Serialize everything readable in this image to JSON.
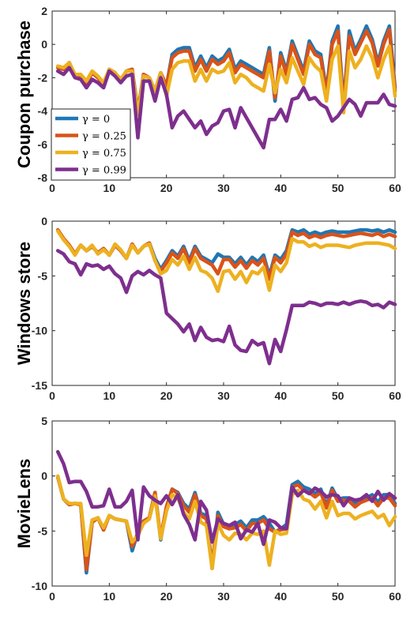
{
  "colors": {
    "gamma_0": "#1f77b4",
    "gamma_0_25": "#d95319",
    "gamma_0_75": "#edb120",
    "gamma_0_99": "#7e2f8e"
  },
  "chart_data": [
    {
      "type": "line",
      "title": "",
      "xlabel": "",
      "ylabel": "Coupon purchase",
      "xlim": [
        0,
        60
      ],
      "ylim": [
        -8,
        2
      ],
      "xticks": [
        "0",
        "10",
        "20",
        "30",
        "40",
        "50",
        "60"
      ],
      "yticks": [
        "2",
        "0",
        "-2",
        "-4",
        "-6",
        "-8"
      ],
      "legend": [
        "γ = 0",
        "γ = 0.25",
        "γ = 0.75",
        "γ = 0.99"
      ],
      "legend_position": "lower-left",
      "grid": false,
      "x": [
        1,
        2,
        3,
        4,
        5,
        6,
        7,
        8,
        9,
        10,
        11,
        12,
        13,
        14,
        15,
        16,
        17,
        18,
        19,
        20,
        21,
        22,
        23,
        24,
        25,
        26,
        27,
        28,
        29,
        30,
        31,
        32,
        33,
        34,
        35,
        36,
        37,
        38,
        39,
        40,
        41,
        42,
        43,
        44,
        45,
        46,
        47,
        48,
        49,
        50,
        51,
        52,
        53,
        54,
        55,
        56,
        57,
        58,
        59,
        60
      ],
      "series": [
        {
          "name": "γ = 0",
          "values": [
            -1.4,
            -1.5,
            -1.1,
            -1.9,
            -1.9,
            -2.3,
            -1.7,
            -2.0,
            -2.4,
            -1.5,
            -1.7,
            -2.2,
            -1.6,
            -1.5,
            -4.0,
            -1.8,
            -2.0,
            -2.8,
            -1.7,
            -2.5,
            -0.6,
            -0.3,
            -0.2,
            -0.2,
            -1.4,
            -0.7,
            -1.4,
            -0.7,
            -1.0,
            -0.8,
            -0.3,
            -1.5,
            -1.0,
            -1.2,
            -1.4,
            -1.6,
            -1.8,
            -0.2,
            -3.4,
            -0.5,
            -1.6,
            0.2,
            -0.7,
            -1.6,
            0.2,
            -0.4,
            -0.6,
            -2.8,
            0.2,
            1.1,
            -3.6,
            0.8,
            -0.4,
            0.3,
            1.1,
            0.3,
            -1.1,
            0.2,
            1.1,
            -2.6
          ]
        },
        {
          "name": "γ = 0.25",
          "values": [
            -1.4,
            -1.5,
            -1.1,
            -1.9,
            -1.9,
            -2.3,
            -1.7,
            -2.0,
            -2.4,
            -1.5,
            -1.7,
            -2.2,
            -1.6,
            -1.5,
            -4.1,
            -1.8,
            -2.0,
            -2.8,
            -1.7,
            -2.5,
            -0.8,
            -0.5,
            -0.4,
            -0.4,
            -1.6,
            -0.9,
            -1.6,
            -0.9,
            -1.2,
            -1.0,
            -0.5,
            -1.7,
            -1.2,
            -1.4,
            -1.6,
            -1.8,
            -2.0,
            -0.4,
            -3.2,
            -0.7,
            -1.8,
            0.0,
            -0.9,
            -1.8,
            0.0,
            -0.6,
            -0.8,
            -3.0,
            0.0,
            0.8,
            -3.8,
            0.5,
            -0.6,
            0.1,
            0.8,
            0.1,
            -1.3,
            0.0,
            0.9,
            -2.8
          ]
        },
        {
          "name": "γ = 0.75",
          "values": [
            -1.3,
            -1.4,
            -1.1,
            -1.8,
            -1.8,
            -2.2,
            -1.6,
            -1.9,
            -2.3,
            -1.5,
            -1.7,
            -2.1,
            -1.6,
            -1.6,
            -4.2,
            -1.9,
            -2.0,
            -2.8,
            -1.7,
            -3.1,
            -1.5,
            -1.1,
            -1.0,
            -1.0,
            -2.2,
            -1.5,
            -2.2,
            -1.5,
            -1.7,
            -1.6,
            -1.1,
            -2.3,
            -1.8,
            -2.0,
            -2.4,
            -2.6,
            -2.8,
            -1.2,
            -2.9,
            -1.5,
            -2.3,
            -0.8,
            -1.6,
            -2.4,
            -0.8,
            -1.3,
            -1.6,
            -3.4,
            -0.9,
            -0.1,
            -4.1,
            -0.4,
            -1.4,
            -0.9,
            -0.1,
            -0.8,
            -2.0,
            -0.9,
            -0.1,
            -3.1
          ]
        },
        {
          "name": "γ = 0.99",
          "values": [
            -1.6,
            -1.8,
            -1.4,
            -2.0,
            -2.1,
            -2.6,
            -2.1,
            -2.3,
            -2.6,
            -1.6,
            -1.9,
            -2.3,
            -1.9,
            -1.8,
            -5.6,
            -2.2,
            -2.2,
            -3.4,
            -2.0,
            -3.0,
            -5.0,
            -4.3,
            -4.0,
            -4.5,
            -5.0,
            -4.6,
            -5.4,
            -4.9,
            -4.7,
            -4.0,
            -3.9,
            -5.0,
            -3.8,
            -4.4,
            -5.0,
            -5.6,
            -6.2,
            -4.5,
            -4.5,
            -3.9,
            -4.6,
            -3.3,
            -3.2,
            -2.6,
            -3.3,
            -3.2,
            -3.6,
            -3.8,
            -4.6,
            -4.3,
            -3.8,
            -3.3,
            -3.6,
            -4.3,
            -3.5,
            -3.5,
            -3.5,
            -3.0,
            -3.6,
            -3.7
          ]
        }
      ]
    },
    {
      "type": "line",
      "title": "",
      "xlabel": "",
      "ylabel": "Windows store",
      "xlim": [
        0,
        60
      ],
      "ylim": [
        -15,
        0
      ],
      "xticks": [
        "0",
        "10",
        "20",
        "30",
        "40",
        "50",
        "60"
      ],
      "yticks": [
        "0",
        "-5",
        "-10",
        "-15"
      ],
      "grid": false,
      "x": [
        1,
        2,
        3,
        4,
        5,
        6,
        7,
        8,
        9,
        10,
        11,
        12,
        13,
        14,
        15,
        16,
        17,
        18,
        19,
        20,
        21,
        22,
        23,
        24,
        25,
        26,
        27,
        28,
        29,
        30,
        31,
        32,
        33,
        34,
        35,
        36,
        37,
        38,
        39,
        40,
        41,
        42,
        43,
        44,
        45,
        46,
        47,
        48,
        49,
        50,
        51,
        52,
        53,
        54,
        55,
        56,
        57,
        58,
        59,
        60
      ],
      "series": [
        {
          "name": "γ = 0",
          "values": [
            -0.8,
            -1.6,
            -2.2,
            -3.0,
            -2.2,
            -2.7,
            -2.3,
            -2.9,
            -2.5,
            -3.1,
            -2.2,
            -2.7,
            -3.4,
            -2.1,
            -2.9,
            -2.3,
            -2.0,
            -3.4,
            -4.4,
            -3.6,
            -2.7,
            -3.2,
            -2.3,
            -3.6,
            -2.3,
            -3.2,
            -3.5,
            -3.8,
            -3.0,
            -3.3,
            -3.3,
            -3.9,
            -3.3,
            -4.0,
            -3.3,
            -3.7,
            -3.1,
            -5.0,
            -3.1,
            -3.5,
            -2.7,
            -0.8,
            -1.0,
            -0.8,
            -1.2,
            -1.0,
            -1.2,
            -1.0,
            -0.9,
            -1.0,
            -1.0,
            -1.0,
            -0.9,
            -0.8,
            -0.8,
            -0.9,
            -0.8,
            -1.0,
            -0.8,
            -1.0
          ]
        },
        {
          "name": "γ = 0.25",
          "values": [
            -0.8,
            -1.6,
            -2.2,
            -3.0,
            -2.2,
            -2.7,
            -2.3,
            -2.9,
            -2.5,
            -3.1,
            -2.2,
            -2.7,
            -3.4,
            -2.1,
            -2.9,
            -2.3,
            -2.0,
            -3.6,
            -4.6,
            -3.8,
            -2.9,
            -3.4,
            -2.5,
            -3.8,
            -2.5,
            -3.4,
            -3.7,
            -4.0,
            -4.8,
            -3.5,
            -3.5,
            -4.2,
            -3.6,
            -4.3,
            -3.6,
            -4.0,
            -3.4,
            -5.3,
            -3.3,
            -3.8,
            -3.0,
            -1.0,
            -1.3,
            -1.1,
            -1.5,
            -1.3,
            -1.5,
            -1.3,
            -1.2,
            -1.3,
            -1.4,
            -1.3,
            -1.2,
            -1.1,
            -1.2,
            -1.3,
            -1.1,
            -1.4,
            -1.2,
            -1.4
          ]
        },
        {
          "name": "γ = 0.75",
          "values": [
            -0.9,
            -1.7,
            -2.3,
            -3.1,
            -2.2,
            -2.7,
            -2.2,
            -3.0,
            -2.6,
            -3.1,
            -2.1,
            -2.6,
            -3.4,
            -2.2,
            -2.9,
            -2.3,
            -2.1,
            -3.6,
            -4.8,
            -4.5,
            -3.5,
            -4.0,
            -3.2,
            -4.4,
            -3.3,
            -4.5,
            -4.7,
            -5.2,
            -6.4,
            -4.6,
            -4.5,
            -5.3,
            -4.6,
            -5.6,
            -4.6,
            -4.8,
            -4.2,
            -6.3,
            -4.0,
            -4.6,
            -3.8,
            -1.6,
            -1.9,
            -1.9,
            -2.3,
            -2.1,
            -2.4,
            -2.2,
            -2.2,
            -2.2,
            -2.3,
            -2.4,
            -2.2,
            -2.1,
            -2.0,
            -2.0,
            -2.0,
            -2.1,
            -2.2,
            -2.5
          ]
        },
        {
          "name": "γ = 0.99",
          "values": [
            -2.7,
            -3.0,
            -3.7,
            -3.9,
            -4.9,
            -3.9,
            -4.1,
            -4.0,
            -4.4,
            -4.1,
            -4.8,
            -5.2,
            -6.5,
            -5.0,
            -4.6,
            -4.9,
            -4.5,
            -4.9,
            -5.2,
            -8.4,
            -8.9,
            -9.4,
            -10.1,
            -9.4,
            -10.9,
            -9.7,
            -10.6,
            -10.9,
            -10.8,
            -11.0,
            -9.6,
            -11.3,
            -11.8,
            -11.9,
            -10.9,
            -11.3,
            -11.1,
            -13.0,
            -10.8,
            -11.9,
            -9.9,
            -7.7,
            -7.7,
            -7.7,
            -7.4,
            -7.5,
            -7.7,
            -7.5,
            -7.5,
            -7.6,
            -7.4,
            -7.6,
            -7.4,
            -7.3,
            -7.4,
            -7.7,
            -7.6,
            -7.9,
            -7.4,
            -7.6
          ]
        }
      ]
    },
    {
      "type": "line",
      "title": "",
      "xlabel": "",
      "ylabel": "MovieLens",
      "xlim": [
        0,
        60
      ],
      "ylim": [
        -10,
        5
      ],
      "xticks": [
        "0",
        "10",
        "20",
        "30",
        "40",
        "50",
        "60"
      ],
      "yticks": [
        "5",
        "0",
        "-5",
        "-10"
      ],
      "grid": false,
      "x": [
        1,
        2,
        3,
        4,
        5,
        6,
        7,
        8,
        9,
        10,
        11,
        12,
        13,
        14,
        15,
        16,
        17,
        18,
        19,
        20,
        21,
        22,
        23,
        24,
        25,
        26,
        27,
        28,
        29,
        30,
        31,
        32,
        33,
        34,
        35,
        36,
        37,
        38,
        39,
        40,
        41,
        42,
        43,
        44,
        45,
        46,
        47,
        48,
        49,
        50,
        51,
        52,
        53,
        54,
        55,
        56,
        57,
        58,
        59,
        60
      ],
      "series": [
        {
          "name": "γ = 0",
          "values": [
            -0.1,
            -2.1,
            -2.6,
            -2.5,
            -2.6,
            -8.8,
            -4.2,
            -3.8,
            -4.9,
            -3.6,
            -3.9,
            -4.0,
            -4.1,
            -6.8,
            -5.1,
            -4.1,
            -3.8,
            -1.5,
            -5.8,
            -2.8,
            -1.2,
            -1.5,
            -2.5,
            -3.0,
            -1.5,
            -3.4,
            -3.6,
            -8.4,
            -3.3,
            -4.4,
            -4.5,
            -4.4,
            -4.1,
            -4.7,
            -4.0,
            -4.0,
            -3.7,
            -4.3,
            -5.1,
            -4.8,
            -4.4,
            -0.8,
            -0.5,
            -1.0,
            -1.2,
            -1.6,
            -1.2,
            -2.7,
            -1.1,
            -2.1,
            -2.0,
            -2.0,
            -2.6,
            -2.1,
            -2.0,
            -1.7,
            -2.4,
            -1.7,
            -1.7,
            -2.5
          ]
        },
        {
          "name": "γ = 0.25",
          "values": [
            -0.1,
            -2.1,
            -2.6,
            -2.5,
            -2.6,
            -8.5,
            -4.2,
            -3.8,
            -4.9,
            -3.6,
            -3.9,
            -4.0,
            -4.1,
            -6.4,
            -5.2,
            -4.1,
            -3.8,
            -1.5,
            -5.6,
            -2.8,
            -1.2,
            -1.6,
            -2.7,
            -3.3,
            -1.7,
            -3.6,
            -3.9,
            -8.2,
            -3.6,
            -4.6,
            -4.8,
            -4.7,
            -4.4,
            -5.0,
            -4.3,
            -4.3,
            -4.0,
            -4.8,
            -5.1,
            -4.9,
            -4.8,
            -1.0,
            -0.8,
            -1.3,
            -1.5,
            -1.9,
            -1.5,
            -2.9,
            -1.3,
            -2.3,
            -2.2,
            -2.3,
            -2.8,
            -2.4,
            -2.2,
            -2.0,
            -2.7,
            -2.0,
            -2.0,
            -2.7
          ]
        },
        {
          "name": "γ = 0.75",
          "values": [
            0.0,
            -2.1,
            -2.5,
            -2.5,
            -2.5,
            -7.2,
            -4.0,
            -3.8,
            -4.7,
            -3.6,
            -3.9,
            -4.0,
            -4.1,
            -6.0,
            -5.4,
            -4.3,
            -3.9,
            -1.8,
            -5.7,
            -3.2,
            -1.7,
            -2.0,
            -3.3,
            -3.9,
            -2.3,
            -4.2,
            -4.5,
            -8.4,
            -4.3,
            -5.4,
            -5.8,
            -5.2,
            -5.3,
            -5.8,
            -5.2,
            -5.3,
            -5.0,
            -8.1,
            -5.0,
            -5.3,
            -5.2,
            -1.7,
            -1.3,
            -2.1,
            -2.3,
            -3.0,
            -2.3,
            -3.8,
            -2.3,
            -3.6,
            -3.4,
            -3.4,
            -3.9,
            -3.6,
            -3.4,
            -3.2,
            -3.8,
            -3.5,
            -4.5,
            -3.7
          ]
        },
        {
          "name": "γ = 0.99",
          "values": [
            2.2,
            1.1,
            -0.6,
            -0.5,
            -0.5,
            -1.4,
            -2.8,
            -2.8,
            -2.7,
            -1.2,
            -2.8,
            -2.8,
            -2.3,
            -1.3,
            -5.8,
            -1.0,
            -1.8,
            -2.2,
            -2.5,
            -1.8,
            -2.6,
            -1.7,
            -3.5,
            -4.4,
            -5.8,
            -2.3,
            -3.1,
            -6.0,
            -3.9,
            -4.3,
            -4.5,
            -4.2,
            -5.7,
            -4.9,
            -5.1,
            -4.3,
            -6.2,
            -4.0,
            -4.2,
            -4.7,
            -4.8,
            -1.0,
            -1.8,
            -1.3,
            -1.6,
            -1.1,
            -1.4,
            -1.9,
            -1.7,
            -1.8,
            -2.7,
            -2.0,
            -2.2,
            -2.1,
            -1.7,
            -2.3,
            -1.4,
            -2.2,
            -1.6,
            -2.0
          ]
        }
      ]
    }
  ]
}
